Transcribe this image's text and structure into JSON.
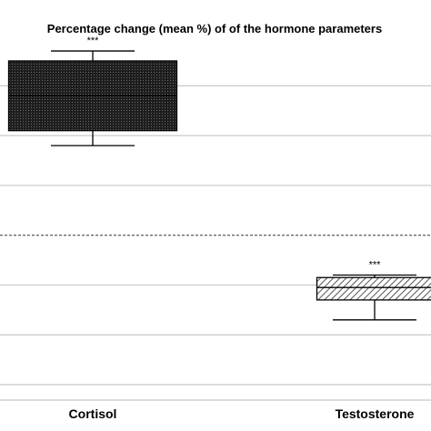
{
  "chart_data": {
    "type": "box",
    "title": "Percentage change (mean %) of of the hormone parameters",
    "xlabel": "",
    "ylabel": "",
    "categories": [
      "Cortisol",
      "Testosterone"
    ],
    "ylim": [
      -60,
      70
    ],
    "grid": true,
    "reference_line": {
      "value": 0,
      "style": "dashed"
    },
    "boxes": [
      {
        "category": "Cortisol",
        "whisker_low": 36,
        "q1": 42,
        "median": 56,
        "q3": 70,
        "whisker_high": 74,
        "annotation": "***",
        "fill": "dark-dotted"
      },
      {
        "category": "Testosterone",
        "whisker_low": -34,
        "q1": -26,
        "median": -21,
        "q3": -17,
        "whisker_high": -16,
        "annotation": "***",
        "fill": "diagonal-hatch"
      }
    ],
    "colors": {
      "grid": "#c8c8c8",
      "axis": "#000000",
      "cortisol_fill": "#2a2a2a",
      "testosterone_fill": "#ffffff",
      "hatch": "#555555"
    }
  }
}
